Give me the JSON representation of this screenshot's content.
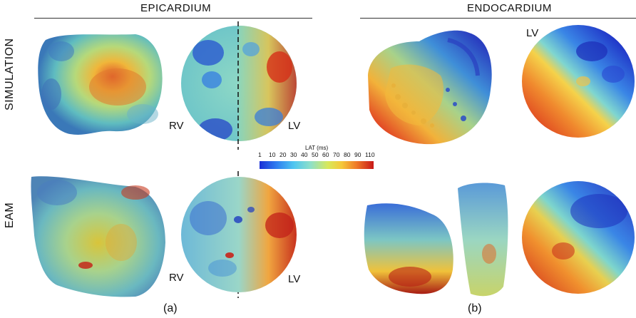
{
  "headers": {
    "epicardium": "EPICARDIUM",
    "endocardium": "ENDOCARDIUM"
  },
  "rows": {
    "simulation": "SIMULATION",
    "eam": "EAM"
  },
  "side_labels": {
    "rv_top": "RV",
    "lv_top": "LV",
    "rv_bottom": "RV",
    "lv_bottom": "LV",
    "lv_endo": "LV"
  },
  "colorbar": {
    "title": "LAT (ms)",
    "ticks": [
      "1",
      "10",
      "20",
      "30",
      "40",
      "50",
      "60",
      "70",
      "80",
      "90",
      "110"
    ],
    "colors": [
      "#1a2fd6",
      "#2f7ef0",
      "#4fc6f0",
      "#8fe0c8",
      "#d8e85a",
      "#f5c83a",
      "#ef7a28",
      "#c81818"
    ]
  },
  "captions": {
    "a": "(a)",
    "b": "(b)"
  }
}
